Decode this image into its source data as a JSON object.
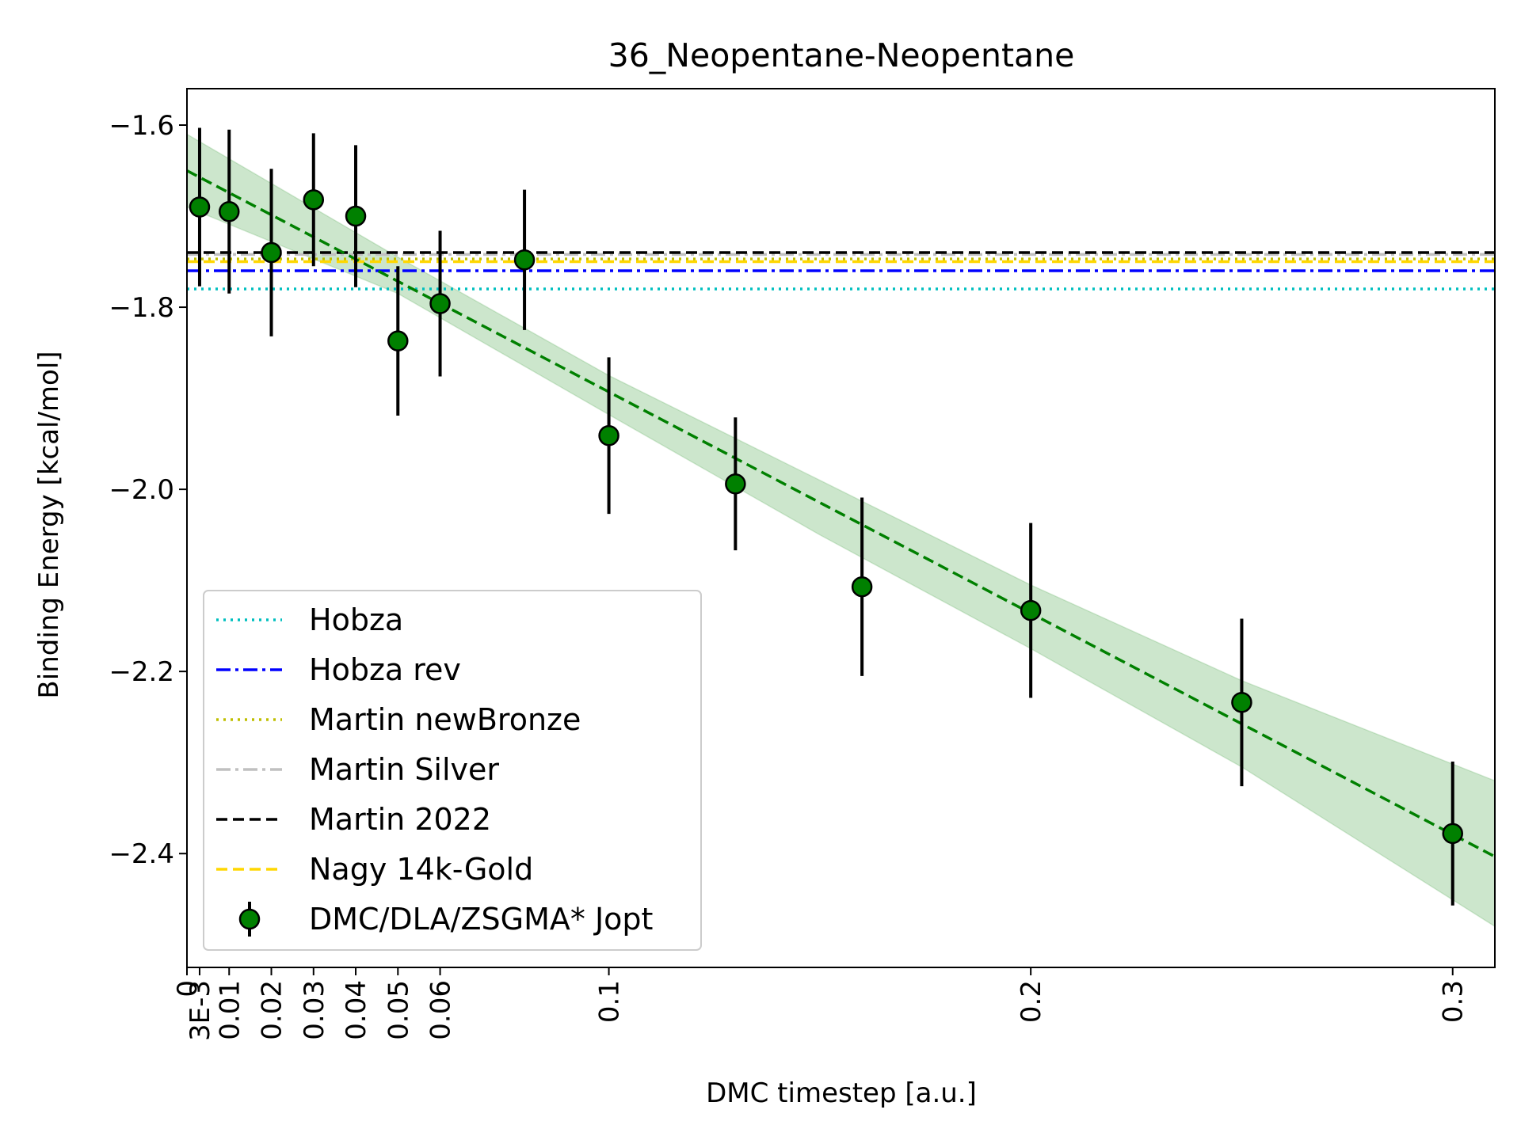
{
  "chart_data": {
    "type": "scatter",
    "title": "36_Neopentane-Neopentane",
    "xlabel": "DMC timestep [a.u.]",
    "ylabel": "Binding Energy [kcal/mol]",
    "xlim": [
      0,
      0.31
    ],
    "ylim": [
      -2.525,
      -1.56
    ],
    "x_ticks": [
      {
        "value": 0,
        "label": "0"
      },
      {
        "value": 0.003,
        "label": "3E-3"
      },
      {
        "value": 0.01,
        "label": "0.01"
      },
      {
        "value": 0.02,
        "label": "0.02"
      },
      {
        "value": 0.03,
        "label": "0.03"
      },
      {
        "value": 0.04,
        "label": "0.04"
      },
      {
        "value": 0.05,
        "label": "0.05"
      },
      {
        "value": 0.06,
        "label": "0.06"
      },
      {
        "value": 0.1,
        "label": "0.1"
      },
      {
        "value": 0.2,
        "label": "0.2"
      },
      {
        "value": 0.3,
        "label": "0.3"
      }
    ],
    "y_ticks": [
      {
        "value": -1.6,
        "label": "−1.6"
      },
      {
        "value": -1.8,
        "label": "−1.8"
      },
      {
        "value": -2.0,
        "label": "−2.0"
      },
      {
        "value": -2.2,
        "label": "−2.2"
      },
      {
        "value": -2.4,
        "label": "−2.4"
      }
    ],
    "grid": false,
    "legend_position": "lower-left",
    "reference_lines": [
      {
        "name": "Hobza",
        "y": -1.78,
        "color": "#00bfbf",
        "style": "dotted"
      },
      {
        "name": "Hobza rev",
        "y": -1.76,
        "color": "#0000ff",
        "style": "dashdot"
      },
      {
        "name": "Martin newBronze",
        "y": -1.747,
        "color": "#bfbf00",
        "style": "dotted"
      },
      {
        "name": "Martin Silver",
        "y": -1.742,
        "color": "#c0c0c0",
        "style": "dashdot"
      },
      {
        "name": "Martin 2022",
        "y": -1.74,
        "color": "#000000",
        "style": "dashed"
      },
      {
        "name": "Nagy 14k-Gold",
        "y": -1.75,
        "color": "#ffd700",
        "style": "dashed"
      }
    ],
    "series": [
      {
        "name": "DMC/DLA/ZSGMA* Jopt",
        "color": "#008000",
        "points": [
          {
            "x": 0.003,
            "y": -1.69,
            "err": 0.087
          },
          {
            "x": 0.01,
            "y": -1.695,
            "err": 0.09
          },
          {
            "x": 0.02,
            "y": -1.74,
            "err": 0.092
          },
          {
            "x": 0.03,
            "y": -1.682,
            "err": 0.073
          },
          {
            "x": 0.04,
            "y": -1.7,
            "err": 0.078
          },
          {
            "x": 0.05,
            "y": -1.837,
            "err": 0.082
          },
          {
            "x": 0.06,
            "y": -1.796,
            "err": 0.08
          },
          {
            "x": 0.08,
            "y": -1.748,
            "err": 0.077
          },
          {
            "x": 0.1,
            "y": -1.941,
            "err": 0.086
          },
          {
            "x": 0.13,
            "y": -1.994,
            "err": 0.073
          },
          {
            "x": 0.16,
            "y": -2.107,
            "err": 0.098
          },
          {
            "x": 0.2,
            "y": -2.133,
            "err": 0.096
          },
          {
            "x": 0.25,
            "y": -2.234,
            "err": 0.092
          },
          {
            "x": 0.3,
            "y": -2.378,
            "err": 0.079
          }
        ]
      }
    ],
    "fit": {
      "color": "#008000",
      "style": "dashed",
      "intercept": -1.65,
      "slope": -2.43,
      "band": [
        {
          "x": 0,
          "lo": -1.69,
          "hi": -1.61
        },
        {
          "x": 0.05,
          "lo": -1.785,
          "hi": -1.745
        },
        {
          "x": 0.1,
          "lo": -1.918,
          "hi": -1.875
        },
        {
          "x": 0.15,
          "lo": -2.05,
          "hi": -1.99
        },
        {
          "x": 0.2,
          "lo": -2.175,
          "hi": -2.105
        },
        {
          "x": 0.25,
          "lo": -2.305,
          "hi": -2.21
        },
        {
          "x": 0.31,
          "lo": -2.48,
          "hi": -2.32
        }
      ]
    },
    "legend_entries": [
      {
        "label": "Hobza",
        "type": "line",
        "color": "#00bfbf",
        "style": "dotted"
      },
      {
        "label": "Hobza rev",
        "type": "line",
        "color": "#0000ff",
        "style": "dashdot"
      },
      {
        "label": "Martin newBronze",
        "type": "line",
        "color": "#bfbf00",
        "style": "dotted"
      },
      {
        "label": "Martin Silver",
        "type": "line",
        "color": "#c0c0c0",
        "style": "dashdot"
      },
      {
        "label": "Martin 2022",
        "type": "line",
        "color": "#000000",
        "style": "dashed"
      },
      {
        "label": "Nagy 14k-Gold",
        "type": "line",
        "color": "#ffd700",
        "style": "dashed"
      },
      {
        "label": "DMC/DLA/ZSGMA* Jopt",
        "type": "marker",
        "color": "#008000"
      }
    ]
  }
}
